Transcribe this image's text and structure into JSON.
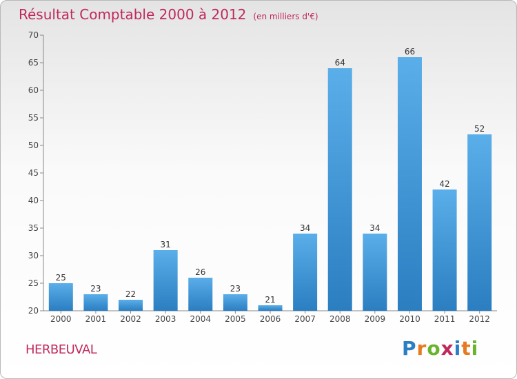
{
  "title": "Résultat Comptable 2000 à 2012",
  "unit": "(en milliers d'€)",
  "commune": "HERBEUVAL",
  "logo": {
    "text": "Proxiti",
    "colors": [
      "#2a7fc4",
      "#e77a20",
      "#69b32d",
      "#c0285d",
      "#2a7fc4",
      "#e77a20",
      "#69b32d"
    ]
  },
  "colors": {
    "bar_top": "#5aaee9",
    "bar_bottom": "#2b7ec0",
    "title": "#c0285d"
  },
  "chart_data": {
    "type": "bar",
    "categories": [
      "2000",
      "2001",
      "2002",
      "2003",
      "2004",
      "2005",
      "2006",
      "2007",
      "2008",
      "2009",
      "2010",
      "2011",
      "2012"
    ],
    "values": [
      25,
      23,
      22,
      31,
      26,
      23,
      21,
      34,
      64,
      34,
      66,
      42,
      52
    ],
    "ylim": [
      20,
      70
    ],
    "yticks": [
      20,
      25,
      30,
      35,
      40,
      45,
      50,
      55,
      60,
      65,
      70
    ],
    "grid": false
  }
}
